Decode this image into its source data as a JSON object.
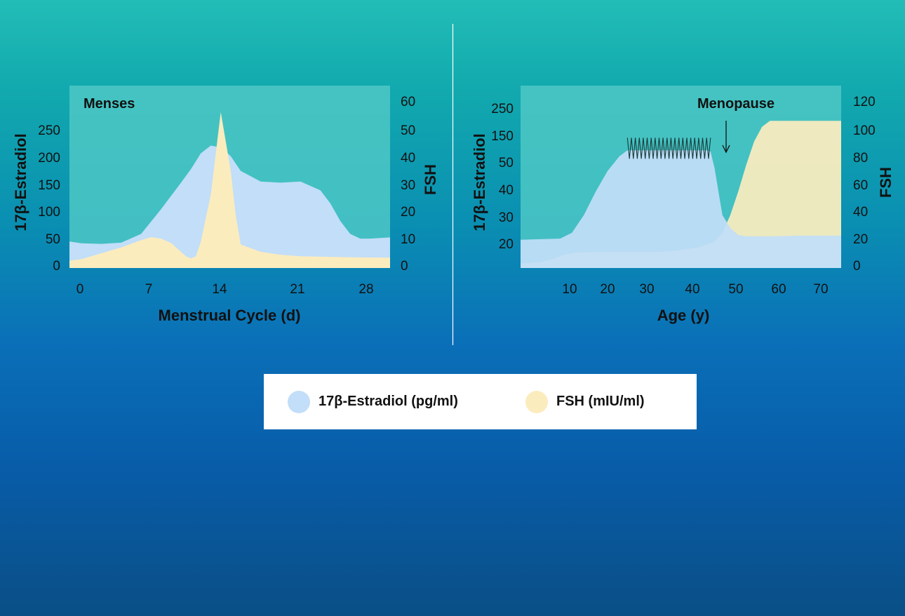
{
  "colors": {
    "estradiol": "#c2def8",
    "fsh": "#fbecbe",
    "plot_bg": "#4ec8c6",
    "divider": "#ffffff"
  },
  "chart_data": [
    {
      "type": "area",
      "xlabel": "Menstrual Cycle (d)",
      "ylabel_left": "17β-Estradiol",
      "ylabel_right": "FSH",
      "annotation": "Menses",
      "xlim": [
        -1.2,
        31
      ],
      "ylim_left": [
        0,
        310
      ],
      "ylim_right": [
        0,
        62
      ],
      "x_ticks": [
        "0",
        "7",
        "14",
        "21",
        "28"
      ],
      "y_left_ticks": [
        "0",
        "50",
        "100",
        "150",
        "200",
        "250"
      ],
      "y_right_ticks": [
        "0",
        "10",
        "20",
        "30",
        "40",
        "50",
        "60"
      ],
      "series": [
        {
          "name": "17β-Estradiol (pg/ml)",
          "axis": "left",
          "x": [
            -1.2,
            0,
            2,
            4,
            6,
            8,
            10,
            11,
            12,
            13,
            14,
            15,
            16,
            18,
            20,
            22,
            24,
            25,
            26,
            27,
            28,
            29,
            30,
            31
          ],
          "values": [
            45,
            42,
            41,
            43,
            58,
            100,
            145,
            168,
            195,
            208,
            205,
            190,
            165,
            147,
            145,
            147,
            132,
            110,
            80,
            58,
            50,
            50,
            51,
            52
          ]
        },
        {
          "name": "FSH (mIU/ml)",
          "axis": "right",
          "x": [
            -1.2,
            0,
            2,
            4,
            6,
            7,
            8,
            9,
            10,
            10.5,
            11,
            11.5,
            12,
            13,
            14,
            15,
            15.5,
            16,
            18,
            20,
            22,
            25,
            28,
            31
          ],
          "values": [
            2.5,
            3,
            5,
            7,
            9.5,
            10.5,
            10,
            8.5,
            5.5,
            4,
            3.3,
            4,
            9,
            25,
            53,
            33,
            18,
            8,
            5.5,
            4.5,
            4,
            3.8,
            3.6,
            3.5
          ]
        }
      ]
    },
    {
      "type": "area",
      "xlabel": "Age (y)",
      "ylabel_left": "17β-Estradiol",
      "ylabel_right": "FSH",
      "annotation": "Menopause",
      "xlim": [
        -5,
        76
      ],
      "ylim_left": [
        0,
        310
      ],
      "ylim_right": [
        0,
        124
      ],
      "x_ticks": [
        "10",
        "20",
        "30",
        "40",
        "50",
        "60",
        "70"
      ],
      "y_left_ticks": [
        "20",
        "30",
        "40",
        "50",
        "150",
        "250"
      ],
      "y_right_ticks": [
        "0",
        "20",
        "40",
        "60",
        "80",
        "100",
        "120"
      ],
      "series": [
        {
          "name": "17β-Estradiol (pg/ml)",
          "axis": "left",
          "x": [
            -5,
            5,
            8,
            11,
            14,
            17,
            20,
            22,
            25,
            30,
            35,
            40,
            42,
            43,
            44,
            45,
            46,
            48,
            50,
            52,
            55,
            60,
            65,
            70,
            76
          ],
          "values": [
            48,
            50,
            60,
            90,
            130,
            165,
            190,
            200,
            200,
            200,
            200,
            200,
            200,
            198,
            170,
            130,
            90,
            68,
            56,
            54,
            54,
            54,
            55,
            55,
            55
          ]
        },
        {
          "name": "FSH (mIU/ml)",
          "axis": "right",
          "x": [
            -5,
            0,
            3,
            6,
            9,
            15,
            20,
            25,
            30,
            35,
            40,
            44,
            46,
            48,
            50,
            52,
            54,
            56,
            58,
            60,
            65,
            70,
            76
          ],
          "values": [
            3,
            4,
            6,
            9,
            10.5,
            11,
            11,
            11,
            11,
            12,
            14,
            18,
            24,
            36,
            52,
            70,
            86,
            96,
            100,
            100,
            100,
            100,
            100
          ]
        }
      ]
    }
  ],
  "legend": {
    "estradiol_label": "17β-Estradiol (pg/ml)",
    "fsh_label": "FSH (mIU/ml)"
  }
}
